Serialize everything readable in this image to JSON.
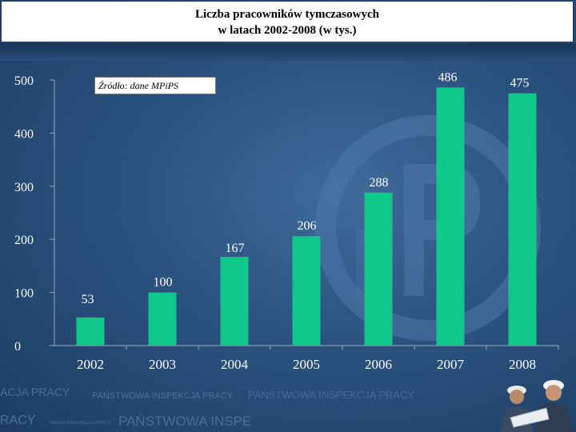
{
  "header": {
    "title_line1": "Liczba pracowników tymczasowych",
    "title_line2": "w latach 2002-2008 (w tys.)"
  },
  "source_note": "Źródło: dane MPiPS",
  "watermark": {
    "line1_a": "ACJA PRACY",
    "line1_b": "PAŃSTWOWA INSPEKCJA PRACY",
    "line1_c": "PAŃSTWOWA INSPEKCJA PRACY",
    "line2_a": "RACY",
    "line2_b": "WOWA INSPEKCJA PRACY",
    "line2_c": "PAŃSTWOWA INSPE"
  },
  "colors": {
    "bar": "#10c88a",
    "text": "#ffffff",
    "axis": "#9aa8b8"
  },
  "chart_data": {
    "type": "bar",
    "title": "Liczba pracowników tymczasowych w latach 2002-2008 (w tys.)",
    "categories": [
      "2002",
      "2003",
      "2004",
      "2005",
      "2006",
      "2007",
      "2008"
    ],
    "values": [
      53,
      100,
      167,
      206,
      288,
      486,
      475
    ],
    "ylim": [
      0,
      500
    ],
    "yticks": [
      "0",
      "100",
      "200",
      "300",
      "400",
      "500"
    ],
    "grid": false,
    "legend": "none",
    "data_labels": true
  }
}
